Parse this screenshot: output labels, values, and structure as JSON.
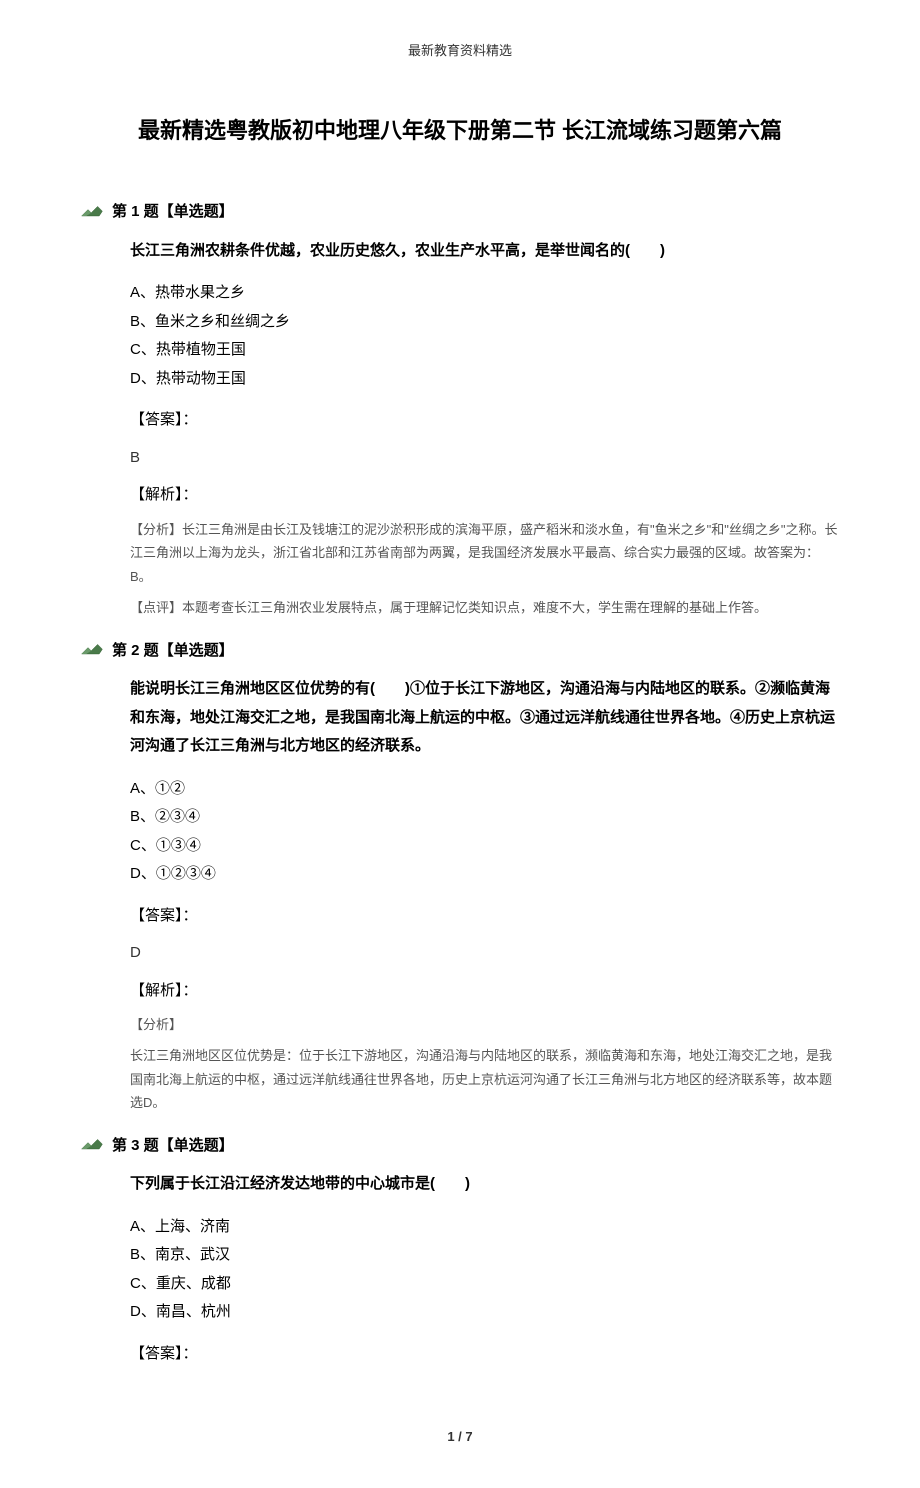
{
  "header": "最新教育资料精选",
  "title": "最新精选粤教版初中地理八年级下册第二节 长江流域练习题第六篇",
  "questions": [
    {
      "num": "第 1 题【单选题】",
      "text": "长江三角洲农耕条件优越，农业历史悠久，农业生产水平高，是举世闻名的(　　)",
      "options": [
        "A、热带水果之乡",
        "B、鱼米之乡和丝绸之乡",
        "C、热带植物王国",
        "D、热带动物王国"
      ],
      "answer_label": "【答案】：",
      "answer": "B",
      "analysis_label": "【解析】：",
      "analysis": [
        "【分析】长江三角洲是由长江及钱塘江的泥沙淤积形成的滨海平原，盛产稻米和淡水鱼，有\"鱼米之乡\"和\"丝绸之乡\"之称。长江三角洲以上海为龙头，浙江省北部和江苏省南部为两翼，是我国经济发展水平最高、综合实力最强的区域。故答案为：B。",
        "【点评】本题考查长江三角洲农业发展特点，属于理解记忆类知识点，难度不大，学生需在理解的基础上作答。"
      ]
    },
    {
      "num": "第 2 题【单选题】",
      "text": "能说明长江三角洲地区区位优势的有(　　)①位于长江下游地区，沟通沿海与内陆地区的联系。②濒临黄海和东海，地处江海交汇之地，是我国南北海上航运的中枢。③通过远洋航线通往世界各地。④历史上京杭运河沟通了长江三角洲与北方地区的经济联系。",
      "options": [
        "A、①②",
        "B、②③④",
        "C、①③④",
        "D、①②③④"
      ],
      "answer_label": "【答案】：",
      "answer": "D",
      "analysis_label": "【解析】：",
      "analysis": [
        "【分析】",
        "长江三角洲地区区位优势是：位于长江下游地区，沟通沿海与内陆地区的联系，濒临黄海和东海，地处江海交汇之地，是我国南北海上航运的中枢，通过远洋航线通往世界各地，历史上京杭运河沟通了长江三角洲与北方地区的经济联系等，故本题选D。"
      ]
    },
    {
      "num": "第 3 题【单选题】",
      "text": "下列属于长江沿江经济发达地带的中心城市是(　　)",
      "options": [
        "A、上海、济南",
        "B、南京、武汉",
        "C、重庆、成都",
        "D、南昌、杭州"
      ],
      "answer_label": "【答案】：",
      "answer": "",
      "analysis_label": "",
      "analysis": []
    }
  ],
  "footer": "1 / 7"
}
